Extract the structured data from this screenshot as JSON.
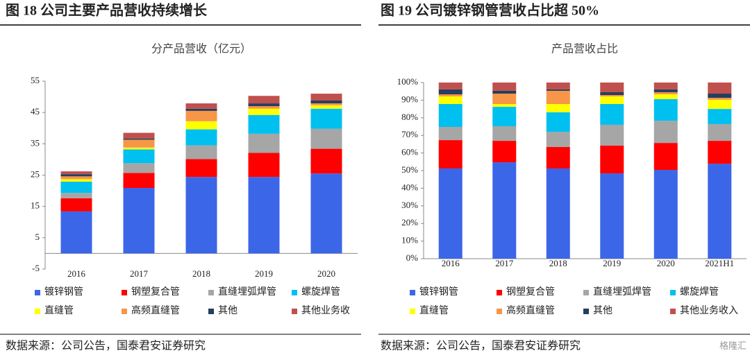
{
  "headers": [
    "图 18  公司主要产品营收持续增长",
    "图 19  公司镀锌钢管营收占比超 50%"
  ],
  "sources": [
    "数据来源：公司公告，国泰君安证券研究",
    "数据来源：公司公告，国泰君安证券研究"
  ],
  "watermark": "格隆汇",
  "chart_data": [
    {
      "type": "stacked_bar",
      "title": "分产品营收（亿元）",
      "categories": [
        "2016",
        "2017",
        "2018",
        "2019",
        "2020"
      ],
      "ylim": [
        -5,
        55
      ],
      "yticks": [
        -5,
        5,
        15,
        25,
        35,
        45,
        55
      ],
      "series": [
        {
          "name": "镀锌钢管",
          "color": "#3c66e8",
          "values": [
            13.4,
            20.9,
            24.4,
            24.4,
            25.5
          ]
        },
        {
          "name": "钢塑复合管",
          "color": "#ff0000",
          "values": [
            4.2,
            4.8,
            5.7,
            7.7,
            7.9
          ]
        },
        {
          "name": "直缝埋弧焊管",
          "color": "#a6a6a6",
          "values": [
            1.7,
            3.1,
            4.4,
            6.1,
            6.4
          ]
        },
        {
          "name": "螺旋焊管",
          "color": "#00c0f0",
          "values": [
            3.6,
            4.4,
            5.1,
            6.0,
            6.4
          ]
        },
        {
          "name": "直缝管",
          "color": "#ffff00",
          "values": [
            0.8,
            0.6,
            2.6,
            2.0,
            1.1
          ]
        },
        {
          "name": "高频直缝管",
          "color": "#f79646",
          "values": [
            0.9,
            2.5,
            3.3,
            0.8,
            0.6
          ]
        },
        {
          "name": "其他",
          "color": "#243f60",
          "values": [
            0.7,
            0.4,
            0.7,
            0.9,
            0.9
          ]
        },
        {
          "name": "其他业务收",
          "color": "#c0504d",
          "values": [
            0.9,
            1.8,
            1.7,
            2.4,
            2.2
          ]
        }
      ]
    },
    {
      "type": "stacked_bar",
      "title": "产品营收占比",
      "categories": [
        "2016",
        "2017",
        "2018",
        "2019",
        "2020",
        "2021H1"
      ],
      "ylim": [
        0,
        100
      ],
      "yticks": [
        {
          "value": 0,
          "label": "0%"
        },
        {
          "value": 10,
          "label": "10%"
        },
        {
          "value": 20,
          "label": "20%"
        },
        {
          "value": 30,
          "label": "30%"
        },
        {
          "value": 40,
          "label": "40%"
        },
        {
          "value": 50,
          "label": "50%"
        },
        {
          "value": 60,
          "label": "60%"
        },
        {
          "value": 70,
          "label": "70%"
        },
        {
          "value": 80,
          "label": "80%"
        },
        {
          "value": 90,
          "label": "90%"
        },
        {
          "value": 100,
          "label": "100%"
        }
      ],
      "series": [
        {
          "name": "镀锌钢管",
          "color": "#3c66e8",
          "values": [
            51.2,
            54.7,
            51.2,
            48.4,
            50.4,
            53.9
          ]
        },
        {
          "name": "钢塑复合管",
          "color": "#ff0000",
          "values": [
            16.1,
            12.2,
            12.2,
            15.8,
            15.3,
            13.0
          ]
        },
        {
          "name": "直缝埋弧焊管",
          "color": "#a6a6a6",
          "values": [
            7.5,
            8.3,
            8.6,
            11.8,
            12.6,
            9.5
          ]
        },
        {
          "name": "螺旋焊管",
          "color": "#00c0f0",
          "values": [
            13.0,
            11.0,
            11.1,
            11.8,
            12.3,
            8.6
          ]
        },
        {
          "name": "直缝管",
          "color": "#ffff00",
          "values": [
            4.3,
            1.6,
            4.7,
            4.3,
            2.7,
            5.2
          ]
        },
        {
          "name": "高频直缝管",
          "color": "#f79646",
          "values": [
            1.2,
            5.9,
            7.5,
            0.8,
            1.2,
            1.1
          ]
        },
        {
          "name": "其他",
          "color": "#243f60",
          "values": [
            2.8,
            1.6,
            0.8,
            1.6,
            1.6,
            2.4
          ]
        },
        {
          "name": "其他业务收入",
          "color": "#c0504d",
          "values": [
            3.9,
            4.7,
            3.9,
            5.5,
            3.9,
            6.3
          ]
        }
      ]
    }
  ]
}
